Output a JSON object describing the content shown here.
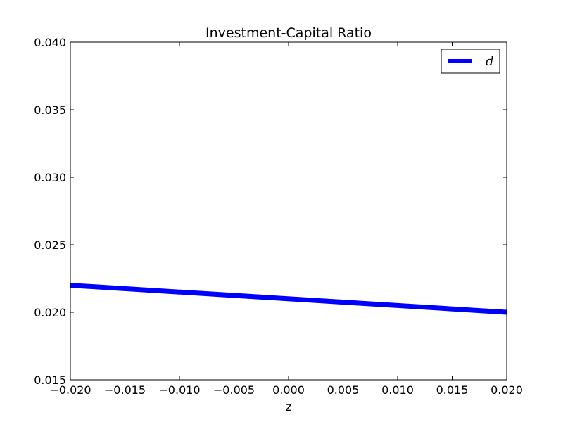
{
  "chart_data": {
    "type": "line",
    "title": "Investment-Capital Ratio",
    "xlabel": "z",
    "ylabel": "",
    "xlim": [
      -0.02,
      0.02
    ],
    "ylim": [
      0.015,
      0.04
    ],
    "xticks": [
      -0.02,
      -0.015,
      -0.01,
      -0.005,
      0.0,
      0.005,
      0.01,
      0.015,
      0.02
    ],
    "xtick_labels": [
      "−0.020",
      "−0.015",
      "−0.010",
      "−0.005",
      "0.000",
      "0.005",
      "0.010",
      "0.015",
      "0.020"
    ],
    "yticks": [
      0.015,
      0.02,
      0.025,
      0.03,
      0.035,
      0.04
    ],
    "ytick_labels": [
      "0.015",
      "0.020",
      "0.025",
      "0.030",
      "0.035",
      "0.040"
    ],
    "grid": false,
    "legend_position": "top-right",
    "series": [
      {
        "name": "d",
        "color": "#0000ff",
        "x": [
          -0.02,
          0.02
        ],
        "y": [
          0.022,
          0.02
        ]
      }
    ]
  }
}
